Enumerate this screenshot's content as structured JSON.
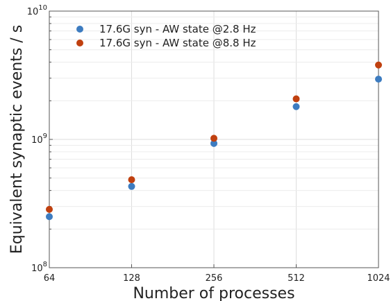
{
  "chart_data": {
    "type": "scatter",
    "xlabel": "Number of processes",
    "ylabel": "Equivalent synaptic events / s",
    "x_scale": "log2",
    "y_scale": "log10",
    "xlim": [
      64,
      1024
    ],
    "ylim": [
      100000000,
      10000000000
    ],
    "x_ticks": [
      64,
      128,
      256,
      512,
      1024
    ],
    "x_tick_labels": [
      "64",
      "128",
      "256",
      "512",
      "1024"
    ],
    "y_tick_labels": [
      {
        "base": "10",
        "exp": "8"
      },
      {
        "base": "10",
        "exp": "9"
      },
      {
        "base": "10",
        "exp": "10"
      }
    ],
    "grid": true,
    "legend_position": "top-left",
    "series": [
      {
        "name": "17.6G syn - AW state @2.8 Hz",
        "color": "#3d7cc0",
        "x": [
          64,
          128,
          256,
          512,
          1024
        ],
        "y": [
          250000000,
          430000000,
          930000000,
          1800000000,
          2950000000
        ]
      },
      {
        "name": "17.6G syn - AW state @8.8 Hz",
        "color": "#c0400f",
        "x": [
          64,
          128,
          256,
          512,
          1024
        ],
        "y": [
          285000000,
          485000000,
          1020000000,
          2070000000,
          3800000000
        ]
      }
    ]
  }
}
